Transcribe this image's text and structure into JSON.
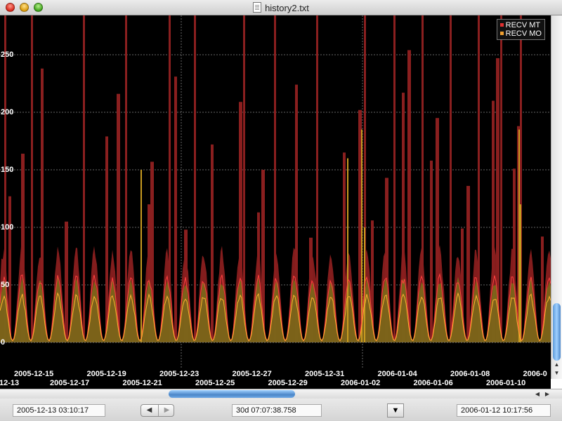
{
  "window": {
    "title": "history2.txt"
  },
  "chart_data": {
    "type": "area",
    "y_ticks": [
      "0",
      "50",
      "100",
      "150",
      "200",
      "250"
    ],
    "ylim": [
      0,
      260
    ],
    "x_ticks_upper": [
      "2005-12-15",
      "2005-12-19",
      "2005-12-23",
      "2005-12-27",
      "2005-12-31",
      "2006-01-04",
      "2006-01-08",
      "2006-0"
    ],
    "x_ticks_lower": [
      "12-13",
      "2005-12-17",
      "2005-12-21",
      "2005-12-25",
      "2005-12-29",
      "2006-01-02",
      "2006-01-06",
      "2006-01-10"
    ],
    "x_range": [
      "2005-12-13 03:10:17",
      "2006-01-12 10:17:56"
    ],
    "grid": true,
    "legend_placement": "top-right",
    "series": [
      {
        "name": "RECV MT",
        "color": "#e03030",
        "daily_peak_approx": 75,
        "daily_trough_approx": 2,
        "spikes_above": 260
      },
      {
        "name": "RECV MO",
        "color": "#f0a030",
        "daily_peak_approx": 50,
        "daily_trough_approx": 2,
        "max_spike_approx": 185
      }
    ]
  },
  "status": {
    "start_time": "2005-12-13 03:10:17",
    "duration": "30d 07:07:38.758",
    "end_time": "2006-01-12 10:17:56",
    "prev_icon": "◀",
    "next_icon": "▶",
    "menu_icon": "▼"
  }
}
